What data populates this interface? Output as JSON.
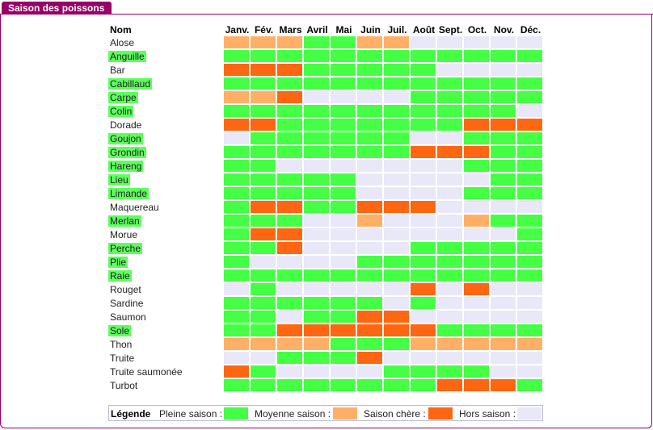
{
  "panel": {
    "title": "Saison des poissons"
  },
  "table": {
    "name_header": "Nom",
    "months": [
      "Janv.",
      "Fév.",
      "Mars",
      "Avril",
      "Mai",
      "Juin",
      "Juil.",
      "Août",
      "Sept.",
      "Oct.",
      "Nov.",
      "Déc."
    ],
    "status_colors": {
      "P": "#44ff44",
      "M": "#ffb066",
      "C": "#ff6611",
      "H": "#e8e8f8"
    },
    "fish": [
      {
        "name": "Alose",
        "highlight": false,
        "months": "MMMPPMMHHHHH"
      },
      {
        "name": "Anguille",
        "highlight": true,
        "months": "PPPPPPPPPPPP"
      },
      {
        "name": "Bar",
        "highlight": false,
        "months": "CCCPPPPPHHHH"
      },
      {
        "name": "Cabillaud",
        "highlight": true,
        "months": "PPPPPPPPPPPP"
      },
      {
        "name": "Carpe",
        "highlight": true,
        "months": "MMCHHHHPPPPP"
      },
      {
        "name": "Colin",
        "highlight": true,
        "months": "PPPPPPPPPPPH"
      },
      {
        "name": "Dorade",
        "highlight": false,
        "months": "CCPPPPPPPCCC"
      },
      {
        "name": "Goujon",
        "highlight": true,
        "months": "HPPPPPPHHPPP"
      },
      {
        "name": "Grondin",
        "highlight": true,
        "months": "PPPPPPPCCCPP"
      },
      {
        "name": "Hareng",
        "highlight": true,
        "months": "PPHHHHHHHPPP"
      },
      {
        "name": "Lieu",
        "highlight": true,
        "months": "PPPPPHHHHHPP"
      },
      {
        "name": "Limande",
        "highlight": true,
        "months": "PPPPPHHHHPPP"
      },
      {
        "name": "Maquereau",
        "highlight": false,
        "months": "PCCPPCCCHHHH"
      },
      {
        "name": "Merlan",
        "highlight": true,
        "months": "PPPHHMHHHMPP"
      },
      {
        "name": "Morue",
        "highlight": false,
        "months": "PCCHHHHHHHHP"
      },
      {
        "name": "Perche",
        "highlight": true,
        "months": "PPCHHHHPPPPP"
      },
      {
        "name": "Plie",
        "highlight": true,
        "months": "PHHHHPPPPPPP"
      },
      {
        "name": "Raie",
        "highlight": true,
        "months": "PPPPPPPPPPPP"
      },
      {
        "name": "Rouget",
        "highlight": false,
        "months": "HPHHHHHCHCHH"
      },
      {
        "name": "Sardine",
        "highlight": false,
        "months": "PPPPPPHPHHHH"
      },
      {
        "name": "Saumon",
        "highlight": false,
        "months": "PPHPPCCHHHHH"
      },
      {
        "name": "Sole",
        "highlight": true,
        "months": "PPCCCCCCPPPP"
      },
      {
        "name": "Thon",
        "highlight": false,
        "months": "MMMMPPPMMMMM"
      },
      {
        "name": "Truite",
        "highlight": false,
        "months": "HHPPPCHHHHHH"
      },
      {
        "name": "Truite saumonée",
        "highlight": false,
        "months": "CPHHHHPPPPHH"
      },
      {
        "name": "Turbot",
        "highlight": false,
        "months": "PPPPPPPPCCCP"
      }
    ]
  },
  "legend": {
    "title": "Légende",
    "items": [
      {
        "label": "Pleine saison :",
        "color": "#44ff44"
      },
      {
        "label": "Moyenne saison :",
        "color": "#ffb066"
      },
      {
        "label": "Saison chère :",
        "color": "#ff6611"
      },
      {
        "label": "Hors saison :",
        "color": "#e8e8f8"
      }
    ]
  }
}
